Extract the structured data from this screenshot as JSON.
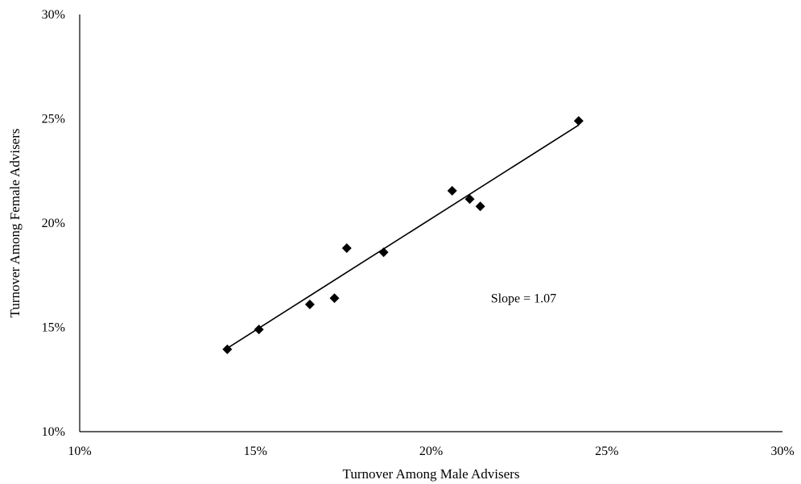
{
  "chart_data": {
    "type": "scatter",
    "title": "",
    "xlabel": "Turnover Among Male Advisers",
    "ylabel": "Turnover Among Female Advisers",
    "xlim": [
      10,
      30
    ],
    "ylim": [
      10,
      30
    ],
    "x_ticks": [
      10,
      15,
      20,
      25,
      30
    ],
    "y_ticks": [
      10,
      15,
      20,
      25,
      30
    ],
    "x_tick_labels": [
      "10%",
      "15%",
      "20%",
      "25%",
      "30%"
    ],
    "y_tick_labels": [
      "10%",
      "15%",
      "20%",
      "25%",
      "30%"
    ],
    "grid": false,
    "legend": "none",
    "marker": "diamond",
    "marker_color": "#000000",
    "series": [
      {
        "points": [
          {
            "x": 14.2,
            "y": 13.95
          },
          {
            "x": 15.1,
            "y": 14.9
          },
          {
            "x": 16.55,
            "y": 16.1
          },
          {
            "x": 17.25,
            "y": 16.4
          },
          {
            "x": 17.6,
            "y": 18.8
          },
          {
            "x": 18.65,
            "y": 18.6
          },
          {
            "x": 20.6,
            "y": 21.55
          },
          {
            "x": 21.1,
            "y": 21.15
          },
          {
            "x": 21.4,
            "y": 20.8
          },
          {
            "x": 24.2,
            "y": 24.9
          }
        ]
      }
    ],
    "trendline": {
      "type": "linear",
      "x_start": 14.2,
      "y_start": 14.0,
      "x_end": 24.2,
      "y_end": 24.7,
      "color": "#000000"
    },
    "annotation": {
      "text": "Slope = 1.07",
      "x": 21.7,
      "y": 16.2
    }
  }
}
